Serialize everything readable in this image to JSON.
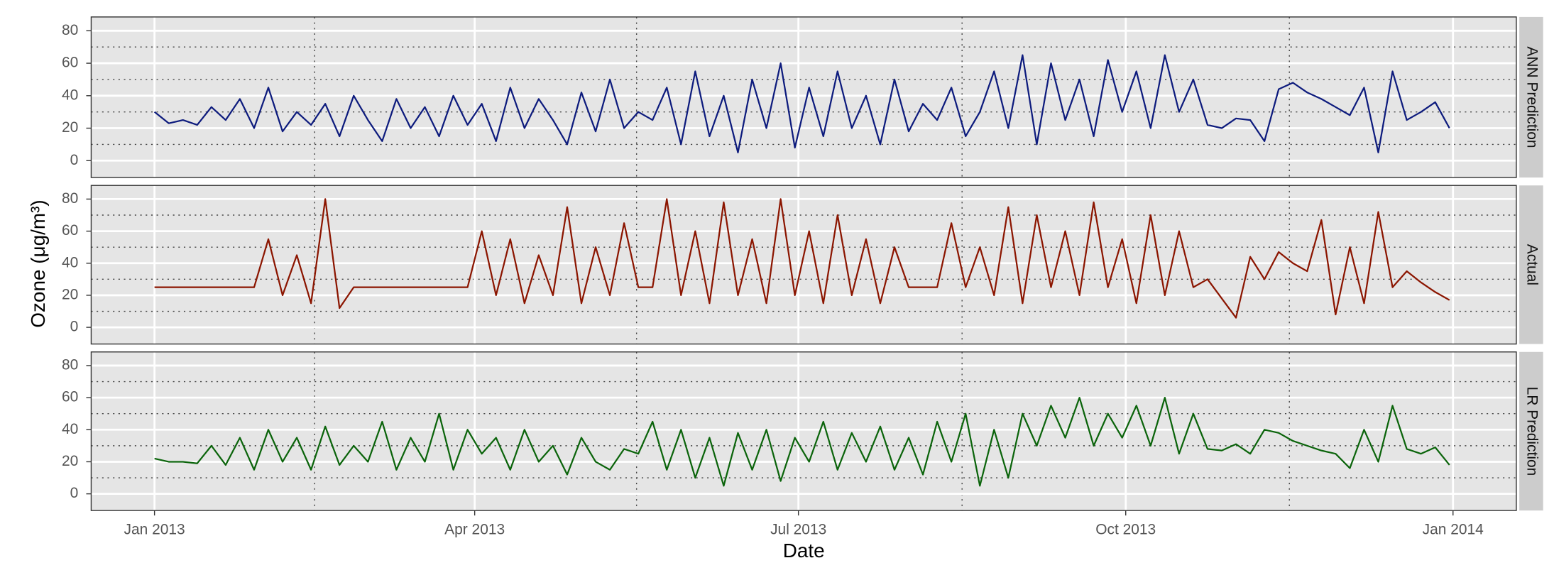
{
  "chart_data": {
    "type": "line",
    "xlabel": "Date",
    "ylabel": "Ozone (μg/m³)",
    "x": [
      0,
      4,
      8,
      12,
      16,
      20,
      24,
      28,
      32,
      36,
      40,
      44,
      48,
      52,
      56,
      60,
      64,
      68,
      72,
      76,
      80,
      84,
      88,
      92,
      96,
      100,
      104,
      108,
      112,
      116,
      120,
      124,
      128,
      132,
      136,
      140,
      144,
      148,
      152,
      156,
      160,
      164,
      168,
      172,
      176,
      180,
      184,
      188,
      192,
      196,
      200,
      204,
      208,
      212,
      216,
      220,
      224,
      228,
      232,
      236,
      240,
      244,
      248,
      252,
      256,
      260,
      264,
      268,
      272,
      276,
      280,
      284,
      288,
      292,
      296,
      300,
      304,
      308,
      312,
      316,
      320,
      324,
      328,
      332,
      336,
      340,
      344,
      348,
      352,
      356,
      360,
      364
    ],
    "xlim": [
      -17.8,
      382.8
    ],
    "xticks": [
      {
        "value": 0,
        "label": "Jan 2013"
      },
      {
        "value": 90,
        "label": "Apr 2013"
      },
      {
        "value": 181,
        "label": "Jul 2013"
      },
      {
        "value": 273,
        "label": "Oct 2013"
      },
      {
        "value": 365,
        "label": "Jan 2014"
      }
    ],
    "xminor": [
      45,
      135.5,
      227,
      319
    ],
    "ylim": [
      -10.4,
      88.5
    ],
    "yticks": [
      0,
      20,
      40,
      60,
      80
    ],
    "yminor": [
      10,
      30,
      50,
      70
    ],
    "grid": true,
    "series": [
      {
        "name": "ANN Prediction",
        "color": "#0d1b7d",
        "values": [
          30,
          23,
          25,
          22,
          33,
          25,
          38,
          20,
          45,
          18,
          30,
          22,
          35,
          15,
          40,
          25,
          12,
          38,
          20,
          33,
          15,
          40,
          22,
          35,
          12,
          45,
          20,
          38,
          25,
          10,
          42,
          18,
          50,
          20,
          30,
          25,
          45,
          10,
          55,
          15,
          40,
          5,
          50,
          20,
          60,
          8,
          45,
          15,
          55,
          20,
          40,
          10,
          50,
          18,
          35,
          25,
          45,
          15,
          30,
          55,
          20,
          65,
          10,
          60,
          25,
          50,
          15,
          62,
          30,
          55,
          20,
          65,
          30,
          50,
          22,
          20,
          26,
          25,
          12,
          44,
          48,
          42,
          38,
          33,
          28,
          45,
          5,
          55,
          25,
          30,
          36,
          20
        ]
      },
      {
        "name": "Actual",
        "color": "#8b1500",
        "values": [
          25,
          25,
          25,
          25,
          25,
          25,
          25,
          25,
          55,
          20,
          45,
          15,
          80,
          12,
          25,
          25,
          25,
          25,
          25,
          25,
          25,
          25,
          25,
          60,
          20,
          55,
          15,
          45,
          20,
          75,
          15,
          50,
          20,
          65,
          25,
          25,
          80,
          20,
          60,
          15,
          78,
          20,
          55,
          15,
          80,
          20,
          60,
          15,
          70,
          20,
          55,
          15,
          50,
          25,
          25,
          25,
          65,
          25,
          50,
          20,
          75,
          15,
          70,
          25,
          60,
          20,
          78,
          25,
          55,
          15,
          70,
          20,
          60,
          25,
          30,
          18,
          6,
          44,
          30,
          47,
          40,
          35,
          67,
          8,
          50,
          15,
          72,
          25,
          35,
          28,
          22,
          17
        ]
      },
      {
        "name": "LR Prediction",
        "color": "#0b640b",
        "values": [
          22,
          20,
          20,
          19,
          30,
          18,
          35,
          15,
          40,
          20,
          35,
          15,
          42,
          18,
          30,
          20,
          45,
          15,
          35,
          20,
          50,
          15,
          40,
          25,
          35,
          15,
          40,
          20,
          30,
          12,
          35,
          20,
          15,
          28,
          25,
          45,
          15,
          40,
          10,
          35,
          5,
          38,
          15,
          40,
          8,
          35,
          20,
          45,
          15,
          38,
          20,
          42,
          15,
          35,
          12,
          45,
          20,
          50,
          5,
          40,
          10,
          50,
          30,
          55,
          35,
          60,
          30,
          50,
          35,
          55,
          30,
          60,
          25,
          50,
          28,
          27,
          31,
          25,
          40,
          38,
          33,
          30,
          27,
          25,
          16,
          40,
          20,
          55,
          28,
          25,
          29,
          18
        ]
      }
    ]
  }
}
